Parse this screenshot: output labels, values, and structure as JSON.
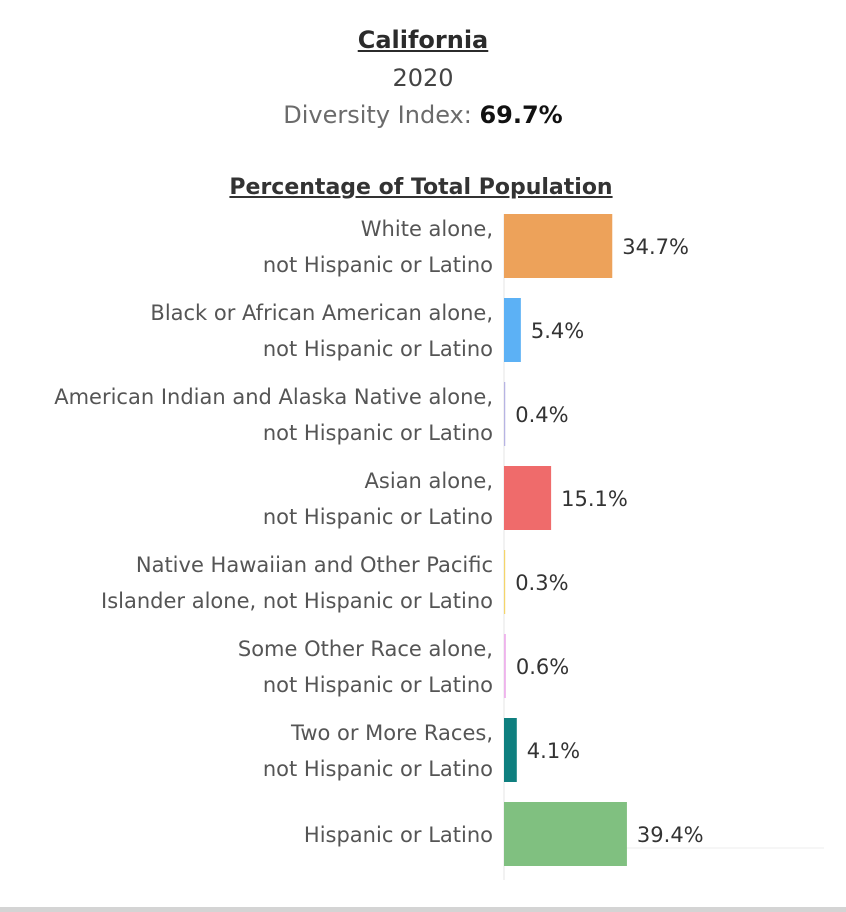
{
  "header": {
    "title": "California",
    "year": "2020",
    "diversity_label": "Diversity Index: ",
    "diversity_value": "69.7%"
  },
  "chart_data": {
    "type": "bar",
    "orientation": "horizontal",
    "title": "Percentage of Total Population",
    "categories": [
      [
        "White alone,",
        "not Hispanic or Latino"
      ],
      [
        "Black or African American alone,",
        "not Hispanic or Latino"
      ],
      [
        "American Indian and Alaska Native alone,",
        "not Hispanic or Latino"
      ],
      [
        "Asian alone,",
        "not Hispanic or Latino"
      ],
      [
        "Native Hawaiian and Other Pacific",
        "Islander alone, not Hispanic or Latino"
      ],
      [
        "Some Other Race alone,",
        "not Hispanic or Latino"
      ],
      [
        "Two or More Races,",
        "not Hispanic or Latino"
      ],
      [
        "Hispanic or Latino"
      ]
    ],
    "values": [
      34.7,
      5.4,
      0.4,
      15.1,
      0.3,
      0.6,
      4.1,
      39.4
    ],
    "value_labels": [
      "34.7%",
      "5.4%",
      "0.4%",
      "15.1%",
      "0.3%",
      "0.6%",
      "4.1%",
      "39.4%"
    ],
    "colors": [
      "#eda25a",
      "#5cb1f5",
      "#b7b4e3",
      "#ef6b6b",
      "#f4d56a",
      "#eeb3ec",
      "#0f7f7f",
      "#80c080"
    ],
    "xlim": [
      0,
      100
    ],
    "grid": false,
    "legend": "none"
  }
}
